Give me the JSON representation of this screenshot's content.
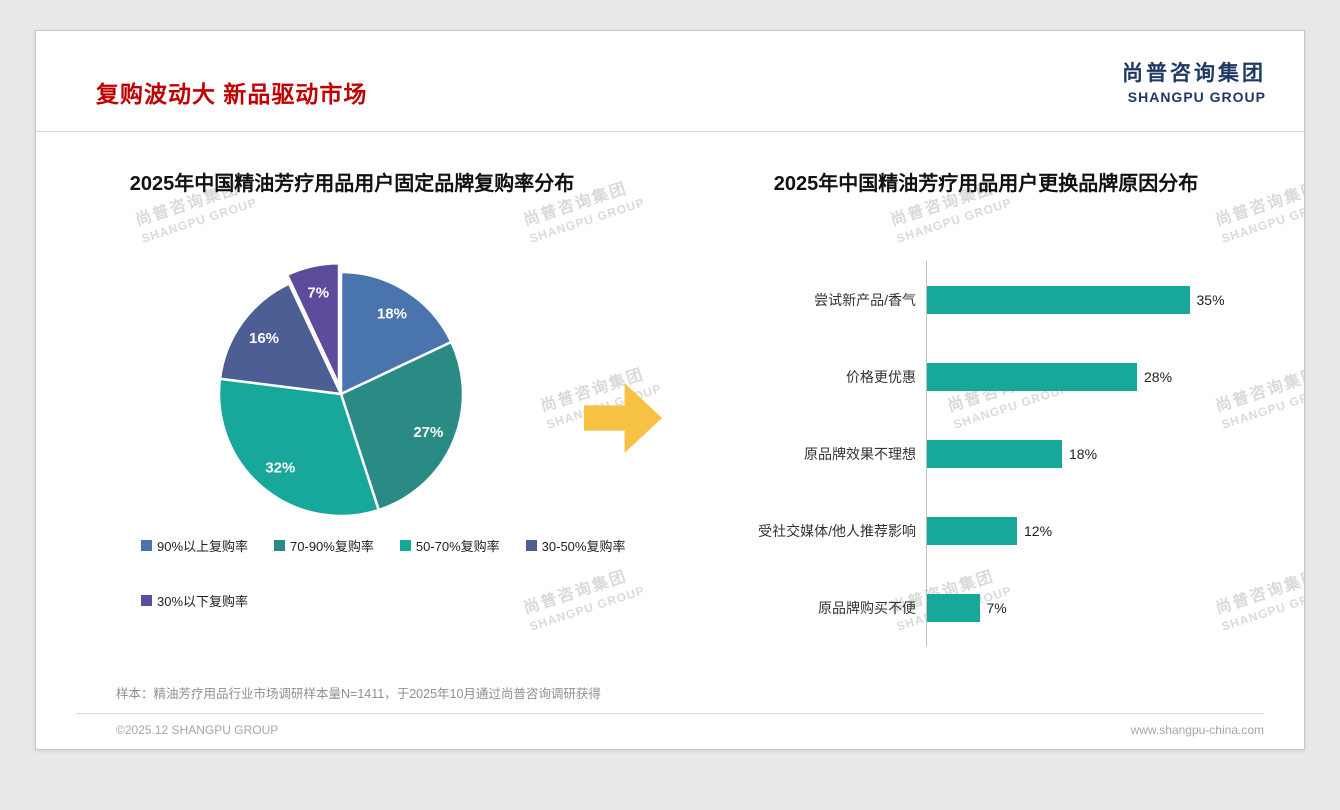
{
  "page": {
    "title": "复购波动大 新品驱动市场",
    "logo": {
      "cn": "尚普咨询集团",
      "en": "SHANGPU GROUP"
    },
    "watermark": {
      "cn": "尚普咨询集团",
      "en": "SHANGPU GROUP"
    },
    "footnote": "样本：精油芳疗用品行业市场调研样本量N=1411，于2025年10月通过尚普咨询调研获得",
    "footer_left": "©2025.12 SHANGPU GROUP",
    "footer_right": "www.shangpu-china.com"
  },
  "arrow_color": "#f7c244",
  "chart_data": [
    {
      "type": "pie",
      "title": "2025年中国精油芳疗用品用户固定品牌复购率分布",
      "labels": [
        "90%以上复购率",
        "70-90%复购率",
        "50-70%复购率",
        "30-50%复购率",
        "30%以下复购率"
      ],
      "values": [
        18,
        27,
        32,
        16,
        7
      ],
      "data_labels": [
        "18%",
        "27%",
        "32%",
        "16%",
        "7%"
      ],
      "colors": [
        "#4a74ae",
        "#2a8b85",
        "#17a79b",
        "#4d5e95",
        "#5d4b9c"
      ],
      "start_angle_deg": -90,
      "direction": "clockwise",
      "exploded_slice_index": 4,
      "legend_position": "bottom"
    },
    {
      "type": "bar",
      "orientation": "horizontal",
      "title": "2025年中国精油芳疗用品用户更换品牌原因分布",
      "categories": [
        "尝试新产品/香气",
        "价格更优惠",
        "原品牌效果不理想",
        "受社交媒体/他人推荐影响",
        "原品牌购买不便"
      ],
      "values": [
        35,
        28,
        18,
        12,
        7
      ],
      "value_labels": [
        "35%",
        "28%",
        "18%",
        "12%",
        "7%"
      ],
      "bar_color": "#17a79b",
      "xlim": [
        0,
        40
      ],
      "grid": false,
      "legend_position": "none"
    }
  ]
}
